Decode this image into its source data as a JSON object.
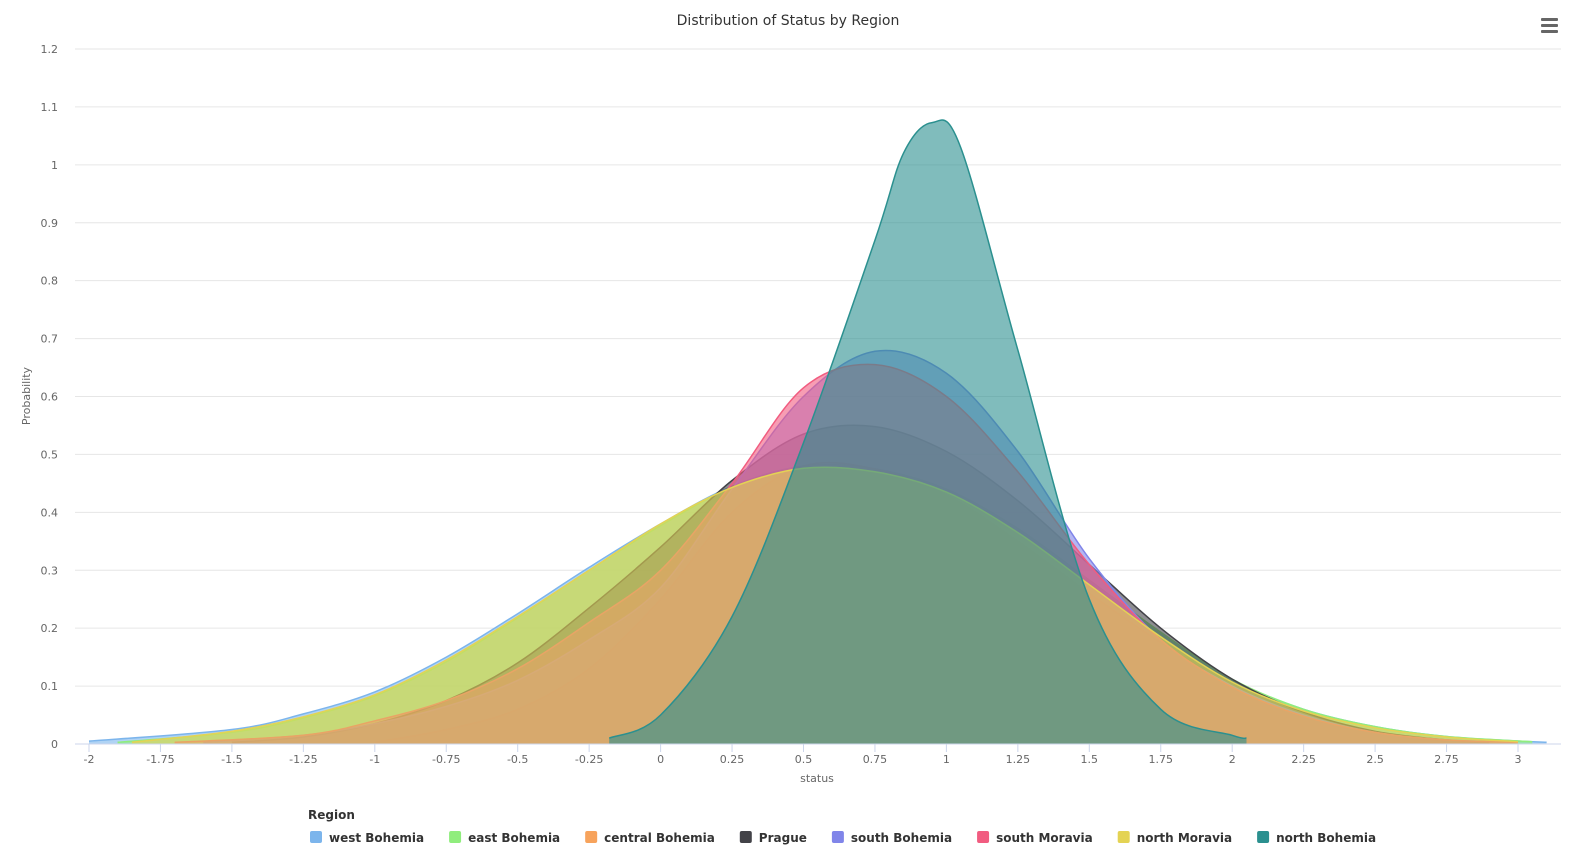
{
  "chart_data": {
    "type": "area",
    "title": "Distribution of Status by Region",
    "xlabel": "status",
    "ylabel": "Probability",
    "xlim": [
      -2,
      3.1
    ],
    "ylim": [
      0,
      1.2
    ],
    "x_ticks": [
      "-2",
      "-1.75",
      "-1.5",
      "-1.25",
      "-1",
      "-0.75",
      "-0.5",
      "-0.25",
      "0",
      "0.25",
      "0.5",
      "0.75",
      "1",
      "1.25",
      "1.5",
      "1.75",
      "2",
      "2.25",
      "2.5",
      "2.75",
      "3"
    ],
    "y_ticks": [
      "0",
      "0.1",
      "0.2",
      "0.3",
      "0.4",
      "0.5",
      "0.6",
      "0.7",
      "0.8",
      "0.9",
      "1",
      "1.1",
      "1.2"
    ],
    "grid": true,
    "legend_title": "Region",
    "legend_position": "bottom",
    "series": [
      {
        "name": "west Bohemia",
        "color": "#7cb5ec",
        "x": [
          -2,
          -1.5,
          -1.25,
          -1,
          -0.75,
          -0.5,
          -0.25,
          0,
          0.25,
          0.5,
          0.75,
          1,
          1.25,
          1.5,
          1.75,
          2,
          2.25,
          2.5,
          2.75,
          3,
          3.1
        ],
        "values": [
          0.005,
          0.025,
          0.052,
          0.09,
          0.15,
          0.225,
          0.305,
          0.38,
          0.445,
          0.48,
          0.475,
          0.44,
          0.37,
          0.28,
          0.19,
          0.11,
          0.06,
          0.03,
          0.013,
          0.005,
          0.003
        ]
      },
      {
        "name": "east Bohemia",
        "color": "#90ed7d",
        "x": [
          -1.9,
          -1.5,
          -1.25,
          -1,
          -0.75,
          -0.5,
          -0.25,
          0,
          0.25,
          0.5,
          0.75,
          1,
          1.25,
          1.5,
          1.75,
          2,
          2.25,
          2.5,
          2.75,
          3.05
        ],
        "values": [
          0.003,
          0.02,
          0.045,
          0.083,
          0.142,
          0.218,
          0.3,
          0.377,
          0.443,
          0.478,
          0.474,
          0.44,
          0.372,
          0.283,
          0.193,
          0.112,
          0.06,
          0.03,
          0.013,
          0.004
        ]
      },
      {
        "name": "central Bohemia",
        "color": "#f7a35c",
        "x": [
          -1.0,
          -0.75,
          -0.5,
          -0.25,
          0,
          0.25,
          0.5,
          0.75,
          1,
          1.25,
          1.5,
          1.75,
          2,
          2.25,
          2.5,
          2.75
        ],
        "values": [
          0.003,
          0.025,
          0.06,
          0.13,
          0.25,
          0.4,
          0.48,
          0.475,
          0.43,
          0.35,
          0.26,
          0.175,
          0.1,
          0.05,
          0.02,
          0.005
        ]
      },
      {
        "name": "Prague",
        "color": "#434348",
        "x": [
          -1.5,
          -1.25,
          -1,
          -0.75,
          -0.5,
          -0.25,
          0,
          0.25,
          0.5,
          0.75,
          1,
          1.25,
          1.5,
          1.75,
          2,
          2.25,
          2.5,
          2.75,
          2.9
        ],
        "values": [
          0.003,
          0.012,
          0.035,
          0.075,
          0.14,
          0.235,
          0.34,
          0.455,
          0.535,
          0.548,
          0.505,
          0.42,
          0.31,
          0.2,
          0.112,
          0.055,
          0.022,
          0.007,
          0.003
        ]
      },
      {
        "name": "south Bohemia",
        "color": "#8085e9",
        "x": [
          -1.6,
          -1.25,
          -1,
          -0.75,
          -0.5,
          -0.25,
          0,
          0.25,
          0.5,
          0.75,
          1,
          1.25,
          1.5,
          1.75,
          2,
          2.25,
          2.5,
          2.75,
          3.0
        ],
        "values": [
          0.003,
          0.015,
          0.035,
          0.065,
          0.11,
          0.18,
          0.27,
          0.44,
          0.6,
          0.678,
          0.64,
          0.505,
          0.32,
          0.18,
          0.1,
          0.05,
          0.02,
          0.007,
          0.003
        ]
      },
      {
        "name": "south Moravia",
        "color": "#f15c80",
        "x": [
          -1.7,
          -1.25,
          -1,
          -0.75,
          -0.5,
          -0.25,
          0,
          0.25,
          0.5,
          0.75,
          1,
          1.25,
          1.5,
          1.75,
          2,
          2.25,
          2.5,
          2.75,
          3.0
        ],
        "values": [
          0.003,
          0.015,
          0.04,
          0.075,
          0.13,
          0.21,
          0.3,
          0.45,
          0.615,
          0.655,
          0.6,
          0.47,
          0.31,
          0.18,
          0.098,
          0.048,
          0.02,
          0.007,
          0.003
        ]
      },
      {
        "name": "north Moravia",
        "color": "#e4d354",
        "x": [
          -1.85,
          -1.5,
          -1.25,
          -1,
          -0.75,
          -0.5,
          -0.25,
          0,
          0.25,
          0.5,
          0.75,
          1,
          1.25,
          1.5,
          1.75,
          2,
          2.25,
          2.5,
          2.75,
          3.0
        ],
        "values": [
          0.003,
          0.022,
          0.047,
          0.085,
          0.145,
          0.22,
          0.3,
          0.38,
          0.443,
          0.476,
          0.47,
          0.435,
          0.365,
          0.275,
          0.185,
          0.107,
          0.057,
          0.028,
          0.012,
          0.004
        ]
      },
      {
        "name": "north Bohemia",
        "color": "#2b908f",
        "x": [
          -0.18,
          0,
          0.25,
          0.5,
          0.75,
          0.85,
          0.95,
          1.05,
          1.25,
          1.5,
          1.75,
          2,
          2.05
        ],
        "values": [
          0.01,
          0.05,
          0.22,
          0.52,
          0.87,
          1.02,
          1.073,
          1.03,
          0.68,
          0.25,
          0.06,
          0.015,
          0.01
        ]
      }
    ]
  }
}
